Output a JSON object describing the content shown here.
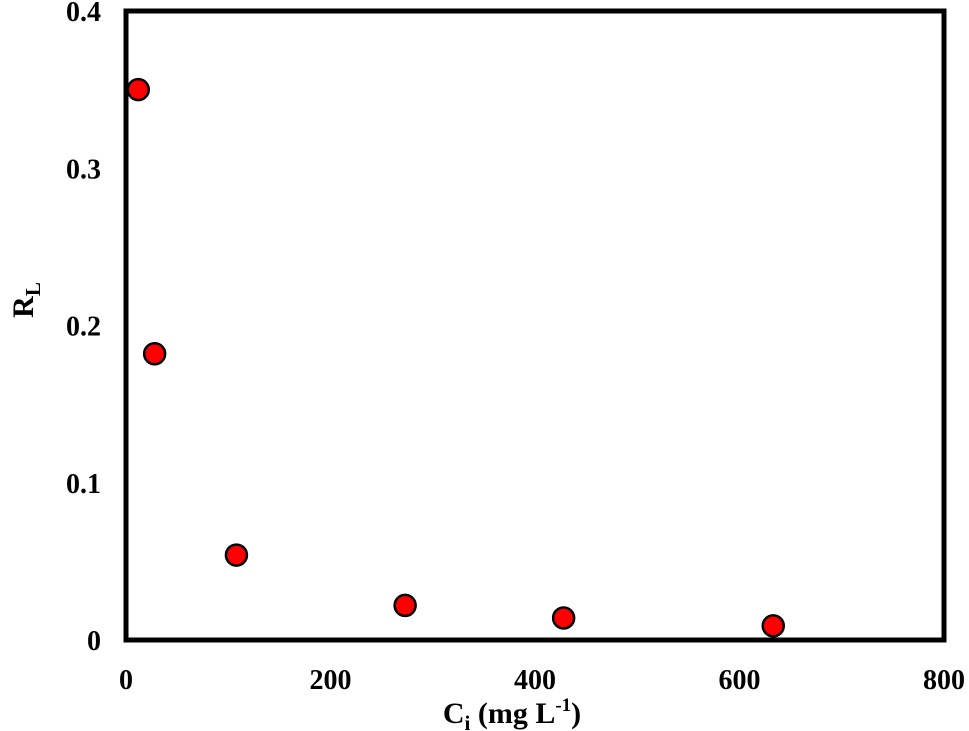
{
  "chart_data": {
    "type": "scatter",
    "title": "",
    "xlabel_main": "C",
    "xlabel_sub": "i",
    "xlabel_paren": " (mg L",
    "xlabel_sup": "-1",
    "xlabel_close": ")",
    "ylabel_main": "R",
    "ylabel_sub": "L",
    "xlim": [
      0,
      800
    ],
    "ylim": [
      0,
      0.4
    ],
    "xticks": [
      0,
      200,
      400,
      600,
      800
    ],
    "xtick_labels": [
      "0",
      "200",
      "400",
      "600",
      "800"
    ],
    "yticks": [
      0,
      0.1,
      0.2,
      0.3,
      0.4
    ],
    "ytick_labels": [
      "0",
      "0.1",
      "0.2",
      "0.3",
      "0.4"
    ],
    "grid": false,
    "legend": "none",
    "marker_color": "#ff0000",
    "marker_edge_color": "#000000",
    "series": [
      {
        "x": [
          12,
          28,
          108,
          273,
          428,
          633
        ],
        "y": [
          0.35,
          0.182,
          0.054,
          0.022,
          0.014,
          0.009
        ]
      }
    ]
  }
}
